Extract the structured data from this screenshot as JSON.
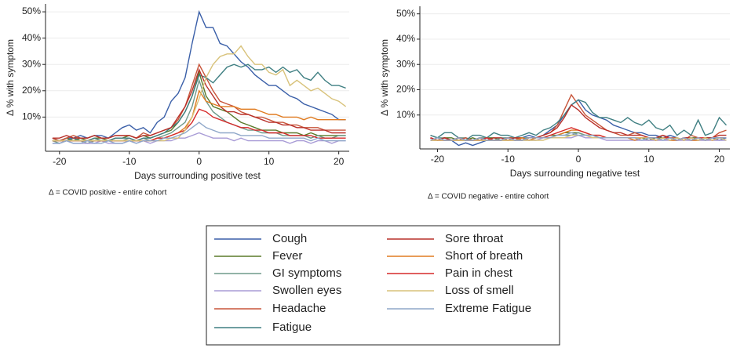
{
  "chart_data": [
    {
      "type": "line",
      "xlabel": "Days surrounding positive test",
      "ylabel": "Δ % with symptom",
      "annotation": "Δ = COVID positive - entire cohort",
      "xlim": [
        -22,
        21.5
      ],
      "ylim": [
        -3,
        53
      ],
      "grid": true,
      "xticks": [
        -20,
        -10,
        0,
        10,
        20
      ],
      "yticks": [
        {
          "value": 10,
          "label": "10%"
        },
        {
          "value": 20,
          "label": "20%"
        },
        {
          "value": 30,
          "label": "30%"
        },
        {
          "value": 40,
          "label": "40%"
        },
        {
          "value": 50,
          "label": "50%"
        }
      ],
      "x": [
        -21,
        -20,
        -19,
        -18,
        -17,
        -16,
        -15,
        -14,
        -13,
        -12,
        -11,
        -10,
        -9,
        -8,
        -7,
        -6,
        -5,
        -4,
        -3,
        -2,
        -1,
        0,
        1,
        2,
        3,
        4,
        5,
        6,
        7,
        8,
        9,
        10,
        11,
        12,
        13,
        14,
        15,
        16,
        17,
        18,
        19,
        20,
        21
      ],
      "series": [
        {
          "name": "Cough",
          "color": "#3a5fa8",
          "values": [
            2,
            1,
            2,
            2,
            3,
            2,
            3,
            3,
            2,
            4,
            6,
            7,
            5,
            6,
            4,
            8,
            10,
            16,
            19,
            25,
            38,
            50,
            44,
            44,
            38,
            37,
            34,
            31,
            29,
            26,
            24,
            22,
            22,
            20,
            18,
            17,
            15,
            14,
            13,
            12,
            11,
            9,
            9
          ]
        },
        {
          "name": "Fever",
          "color": "#5a7a2a",
          "values": [
            1,
            1,
            2,
            1,
            2,
            1,
            2,
            2,
            1,
            2,
            2,
            3,
            2,
            3,
            2,
            3,
            4,
            5,
            8,
            12,
            18,
            27,
            18,
            14,
            13,
            12,
            10,
            8,
            7,
            6,
            5,
            5,
            5,
            4,
            4,
            4,
            3,
            4,
            3,
            3,
            3,
            3,
            3
          ]
        },
        {
          "name": "GI symptoms",
          "color": "#6f9a8a",
          "values": [
            1,
            0,
            1,
            1,
            1,
            0,
            1,
            1,
            1,
            1,
            1,
            2,
            1,
            2,
            1,
            2,
            3,
            4,
            6,
            8,
            14,
            24,
            16,
            12,
            10,
            8,
            7,
            6,
            5,
            5,
            4,
            4,
            4,
            3,
            3,
            3,
            3,
            2,
            3,
            2,
            2,
            3,
            3
          ]
        },
        {
          "name": "Swollen eyes",
          "color": "#a89bd6",
          "values": [
            0,
            0,
            1,
            0,
            0,
            0,
            0,
            1,
            0,
            0,
            0,
            1,
            0,
            1,
            0,
            1,
            1,
            1,
            2,
            2,
            3,
            4,
            3,
            2,
            2,
            2,
            1,
            2,
            1,
            1,
            1,
            1,
            1,
            1,
            0,
            1,
            1,
            0,
            1,
            1,
            0,
            1,
            1
          ]
        },
        {
          "name": "Headache",
          "color": "#c8553a",
          "values": [
            2,
            1,
            2,
            3,
            2,
            2,
            3,
            2,
            2,
            3,
            3,
            3,
            2,
            4,
            3,
            4,
            5,
            6,
            9,
            14,
            22,
            30,
            25,
            20,
            16,
            15,
            14,
            12,
            11,
            10,
            10,
            9,
            8,
            8,
            7,
            7,
            6,
            6,
            6,
            5,
            5,
            5,
            5
          ]
        },
        {
          "name": "Fatigue",
          "color": "#3f7f82",
          "values": [
            1,
            1,
            1,
            2,
            1,
            1,
            2,
            1,
            1,
            2,
            2,
            2,
            1,
            2,
            2,
            3,
            4,
            6,
            8,
            12,
            18,
            26,
            25,
            23,
            26,
            29,
            30,
            29,
            30,
            28,
            28,
            29,
            27,
            29,
            27,
            28,
            25,
            24,
            27,
            24,
            22,
            22,
            21
          ]
        },
        {
          "name": "Sore throat",
          "color": "#b8302a",
          "values": [
            2,
            2,
            3,
            2,
            2,
            2,
            3,
            2,
            2,
            3,
            3,
            3,
            2,
            3,
            3,
            4,
            5,
            6,
            10,
            14,
            20,
            28,
            22,
            18,
            14,
            12,
            12,
            11,
            11,
            10,
            9,
            8,
            8,
            7,
            7,
            6,
            6,
            5,
            5,
            5,
            4,
            4,
            4
          ]
        },
        {
          "name": "Short of breath",
          "color": "#e07b20",
          "values": [
            1,
            1,
            1,
            1,
            1,
            1,
            1,
            1,
            1,
            1,
            1,
            1,
            1,
            1,
            1,
            2,
            2,
            3,
            4,
            6,
            10,
            20,
            16,
            15,
            14,
            14,
            14,
            13,
            13,
            13,
            12,
            11,
            11,
            10,
            10,
            10,
            9,
            10,
            9,
            9,
            9,
            9,
            9
          ]
        },
        {
          "name": "Pain in chest",
          "color": "#d62a2a",
          "values": [
            1,
            1,
            1,
            1,
            1,
            1,
            1,
            1,
            1,
            1,
            1,
            1,
            1,
            1,
            1,
            2,
            2,
            3,
            4,
            5,
            8,
            13,
            12,
            10,
            9,
            8,
            7,
            6,
            6,
            5,
            5,
            4,
            4,
            4,
            3,
            3,
            3,
            3,
            2,
            2,
            2,
            2,
            2
          ]
        },
        {
          "name": "Loss of smell",
          "color": "#d8c27a",
          "values": [
            1,
            1,
            1,
            1,
            1,
            1,
            1,
            1,
            1,
            1,
            1,
            1,
            1,
            1,
            1,
            1,
            1,
            2,
            2,
            5,
            10,
            17,
            25,
            30,
            33,
            34,
            34,
            37,
            33,
            30,
            30,
            27,
            26,
            28,
            22,
            24,
            22,
            20,
            21,
            19,
            17,
            16,
            14
          ]
        },
        {
          "name": "Extreme Fatigue",
          "color": "#8fa7c9",
          "values": [
            0,
            0,
            1,
            0,
            0,
            1,
            0,
            0,
            1,
            0,
            0,
            1,
            0,
            1,
            1,
            1,
            2,
            2,
            3,
            4,
            6,
            8,
            6,
            5,
            4,
            4,
            4,
            3,
            3,
            3,
            3,
            2,
            2,
            2,
            2,
            2,
            2,
            1,
            2,
            1,
            1,
            1,
            1
          ]
        }
      ]
    },
    {
      "type": "line",
      "xlabel": "Days surrounding negative test",
      "ylabel": "Δ % with symptom",
      "annotation": "Δ = COVID negative - entire cohort",
      "xlim": [
        -22.5,
        21.5
      ],
      "ylim": [
        -3.4,
        53
      ],
      "grid": true,
      "xticks": [
        -20,
        -10,
        0,
        10,
        20
      ],
      "yticks": [
        {
          "value": 10,
          "label": "10%"
        },
        {
          "value": 20,
          "label": "20%"
        },
        {
          "value": 30,
          "label": "30%"
        },
        {
          "value": 40,
          "label": "40%"
        },
        {
          "value": 50,
          "label": "50%"
        }
      ],
      "x": [
        -21,
        -20,
        -19,
        -18,
        -17,
        -16,
        -15,
        -14,
        -13,
        -12,
        -11,
        -10,
        -9,
        -8,
        -7,
        -6,
        -5,
        -4,
        -3,
        -2,
        -1,
        0,
        1,
        2,
        3,
        4,
        5,
        6,
        7,
        8,
        9,
        10,
        11,
        12,
        13,
        14,
        15,
        16,
        17,
        18,
        19,
        20,
        21
      ],
      "series": [
        {
          "values": [
            1,
            0,
            1,
            0,
            -2,
            -1,
            -2,
            -1,
            0,
            0,
            0,
            1,
            0,
            1,
            2,
            1,
            2,
            4,
            6,
            10,
            14,
            16,
            12,
            10,
            9,
            8,
            6,
            5,
            4,
            3,
            3,
            2,
            2,
            1,
            2,
            1,
            0,
            1,
            0,
            1,
            1,
            0,
            1
          ]
        },
        {
          "values": [
            1,
            0,
            1,
            1,
            0,
            0,
            1,
            0,
            1,
            1,
            0,
            1,
            1,
            0,
            1,
            1,
            1,
            2,
            2,
            3,
            3,
            3,
            2,
            2,
            1,
            1,
            1,
            1,
            1,
            1,
            1,
            0,
            1,
            1,
            0,
            1,
            0,
            1,
            1,
            0,
            1,
            1,
            1
          ]
        },
        {
          "values": [
            2,
            1,
            1,
            0,
            1,
            1,
            0,
            1,
            1,
            0,
            1,
            1,
            0,
            1,
            1,
            1,
            1,
            1,
            2,
            2,
            2,
            3,
            2,
            2,
            1,
            1,
            1,
            1,
            1,
            1,
            1,
            1,
            0,
            1,
            1,
            0,
            1,
            1,
            0,
            1,
            1,
            1,
            1
          ]
        },
        {
          "values": [
            0,
            0,
            0,
            0,
            0,
            0,
            0,
            0,
            0,
            0,
            0,
            0,
            0,
            0,
            0,
            0,
            1,
            1,
            1,
            1,
            1,
            2,
            1,
            1,
            1,
            0,
            0,
            0,
            0,
            0,
            0,
            0,
            0,
            0,
            0,
            0,
            0,
            0,
            0,
            0,
            0,
            0,
            0
          ]
        },
        {
          "values": [
            1,
            0,
            1,
            0,
            0,
            1,
            0,
            0,
            1,
            0,
            0,
            1,
            1,
            0,
            1,
            1,
            2,
            3,
            6,
            12,
            18,
            14,
            10,
            8,
            6,
            4,
            3,
            2,
            2,
            3,
            2,
            1,
            1,
            2,
            1,
            1,
            0,
            2,
            1,
            0,
            1,
            3,
            4
          ]
        },
        {
          "values": [
            2,
            1,
            3,
            3,
            1,
            0,
            2,
            2,
            1,
            3,
            2,
            2,
            1,
            2,
            3,
            2,
            4,
            5,
            7,
            10,
            14,
            16,
            15,
            11,
            9,
            9,
            8,
            7,
            9,
            7,
            6,
            8,
            5,
            4,
            6,
            2,
            4,
            2,
            8,
            2,
            3,
            9,
            6
          ]
        },
        {
          "values": [
            1,
            0,
            1,
            0,
            1,
            0,
            0,
            1,
            0,
            1,
            1,
            0,
            1,
            1,
            0,
            1,
            2,
            3,
            5,
            9,
            14,
            12,
            9,
            7,
            5,
            4,
            3,
            3,
            2,
            2,
            2,
            1,
            1,
            2,
            1,
            0,
            1,
            1,
            0,
            1,
            1,
            2,
            2
          ]
        },
        {
          "values": [
            0,
            0,
            0,
            0,
            0,
            0,
            0,
            0,
            0,
            0,
            0,
            0,
            0,
            1,
            0,
            1,
            1,
            1,
            2,
            3,
            4,
            4,
            3,
            2,
            2,
            1,
            1,
            1,
            1,
            0,
            1,
            1,
            0,
            1,
            0,
            0,
            1,
            0,
            0,
            1,
            0,
            1,
            1
          ]
        },
        {
          "values": [
            1,
            0,
            0,
            0,
            1,
            0,
            0,
            0,
            1,
            0,
            0,
            1,
            0,
            0,
            1,
            1,
            1,
            2,
            3,
            4,
            5,
            4,
            3,
            2,
            2,
            1,
            1,
            1,
            1,
            1,
            1,
            1,
            0,
            1,
            1,
            0,
            1,
            0,
            1,
            1,
            0,
            1,
            1
          ]
        },
        {
          "values": [
            0,
            0,
            0,
            0,
            0,
            0,
            0,
            0,
            0,
            0,
            0,
            0,
            0,
            0,
            0,
            0,
            0,
            1,
            1,
            1,
            2,
            2,
            2,
            1,
            1,
            1,
            1,
            1,
            1,
            1,
            1,
            1,
            0,
            1,
            0,
            1,
            0,
            1,
            0,
            1,
            0,
            1,
            0
          ]
        },
        {
          "values": [
            0,
            1,
            0,
            0,
            1,
            0,
            0,
            1,
            0,
            0,
            0,
            1,
            0,
            0,
            1,
            1,
            1,
            1,
            2,
            2,
            3,
            2,
            2,
            2,
            1,
            1,
            1,
            1,
            1,
            1,
            0,
            1,
            1,
            0,
            1,
            0,
            1,
            0,
            1,
            0,
            1,
            1,
            1
          ]
        }
      ]
    }
  ]
}
